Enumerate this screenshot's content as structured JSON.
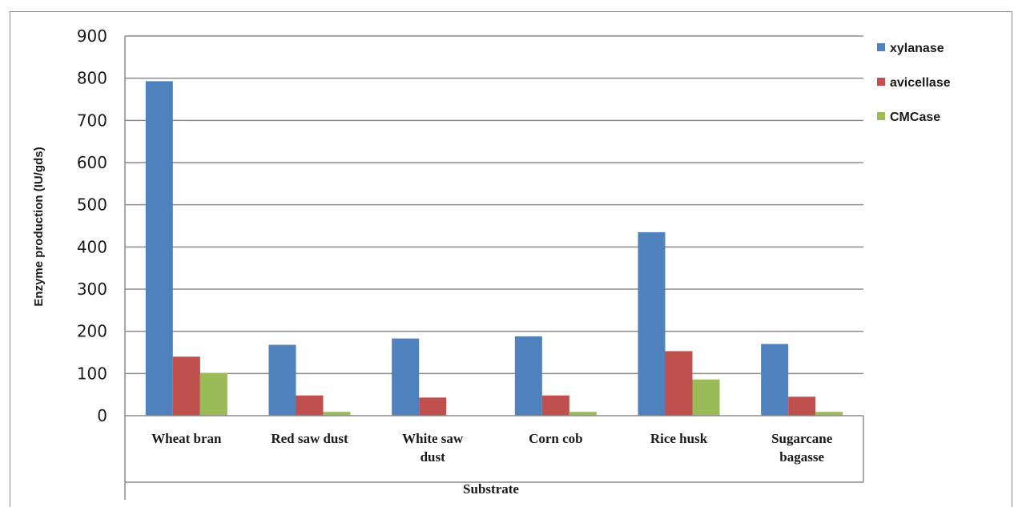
{
  "chart_data": {
    "type": "bar",
    "categories": [
      [
        "Wheat bran"
      ],
      [
        "Red saw dust"
      ],
      [
        "White saw",
        "dust"
      ],
      [
        "Corn cob"
      ],
      [
        "Rice husk"
      ],
      [
        "Sugarcane",
        "bagasse"
      ]
    ],
    "series": [
      {
        "name": "xylanase",
        "color": "#4f81bd",
        "values": [
          793,
          168,
          183,
          188,
          435,
          170
        ]
      },
      {
        "name": "avicellase",
        "color": "#c0504d",
        "values": [
          140,
          48,
          43,
          48,
          153,
          45
        ]
      },
      {
        "name": "CMCase",
        "color": "#9bbb59",
        "values": [
          101,
          9,
          0,
          9,
          86,
          9
        ]
      }
    ],
    "xlabel": "Substrate",
    "ylabel": "Enzyme production (IU/gds)",
    "ylim": [
      0,
      900
    ],
    "yticks": [
      "0",
      "100",
      "200",
      "300",
      "400",
      "500",
      "600",
      "700",
      "800",
      "900"
    ],
    "grid": true,
    "legend_position": "right"
  }
}
